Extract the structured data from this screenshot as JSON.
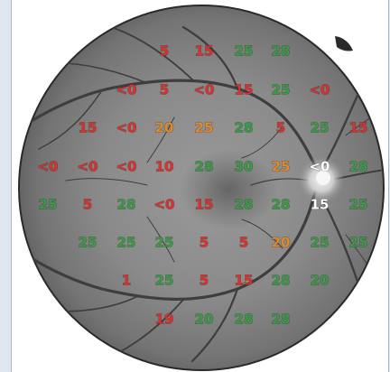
{
  "colors": {
    "red": "#d8322e",
    "green": "#3a9a45",
    "orange": "#e08a2c",
    "white": "#ffffff"
  },
  "sensitivity_grid": [
    {
      "label": "5",
      "color": "red"
    },
    {
      "label": "15",
      "color": "red"
    },
    {
      "label": "25",
      "color": "green"
    },
    {
      "label": "28",
      "color": "green"
    },
    {
      "label": "<0",
      "color": "red"
    },
    {
      "label": "5",
      "color": "red"
    },
    {
      "label": "<0",
      "color": "red"
    },
    {
      "label": "15",
      "color": "red"
    },
    {
      "label": "25",
      "color": "green"
    },
    {
      "label": "<0",
      "color": "red"
    },
    {
      "label": "15",
      "color": "red"
    },
    {
      "label": "<0",
      "color": "red"
    },
    {
      "label": "20",
      "color": "orange"
    },
    {
      "label": "25",
      "color": "orange"
    },
    {
      "label": "28",
      "color": "green"
    },
    {
      "label": "5",
      "color": "red"
    },
    {
      "label": "25",
      "color": "green"
    },
    {
      "label": "15",
      "color": "red"
    },
    {
      "label": "<0",
      "color": "red"
    },
    {
      "label": "<0",
      "color": "red"
    },
    {
      "label": "<0",
      "color": "red"
    },
    {
      "label": "10",
      "color": "red"
    },
    {
      "label": "28",
      "color": "green"
    },
    {
      "label": "30",
      "color": "green"
    },
    {
      "label": "25",
      "color": "orange"
    },
    {
      "label": "<0",
      "color": "white"
    },
    {
      "label": "28",
      "color": "green"
    },
    {
      "label": "25",
      "color": "green"
    },
    {
      "label": "5",
      "color": "red"
    },
    {
      "label": "28",
      "color": "green"
    },
    {
      "label": "<0",
      "color": "red"
    },
    {
      "label": "15",
      "color": "red"
    },
    {
      "label": "28",
      "color": "green"
    },
    {
      "label": "28",
      "color": "green"
    },
    {
      "label": "15",
      "color": "white"
    },
    {
      "label": "25",
      "color": "green"
    },
    {
      "label": "25",
      "color": "green"
    },
    {
      "label": "25",
      "color": "green"
    },
    {
      "label": "25",
      "color": "green"
    },
    {
      "label": "5",
      "color": "red"
    },
    {
      "label": "5",
      "color": "red"
    },
    {
      "label": "20",
      "color": "orange"
    },
    {
      "label": "25",
      "color": "green"
    },
    {
      "label": "25",
      "color": "green"
    },
    {
      "label": "1",
      "color": "red"
    },
    {
      "label": "25",
      "color": "green"
    },
    {
      "label": "5",
      "color": "red"
    },
    {
      "label": "15",
      "color": "red"
    },
    {
      "label": "28",
      "color": "green"
    },
    {
      "label": "20",
      "color": "green"
    },
    {
      "label": "19",
      "color": "red"
    },
    {
      "label": "20",
      "color": "green"
    },
    {
      "label": "28",
      "color": "green"
    },
    {
      "label": "28",
      "color": "green"
    }
  ]
}
